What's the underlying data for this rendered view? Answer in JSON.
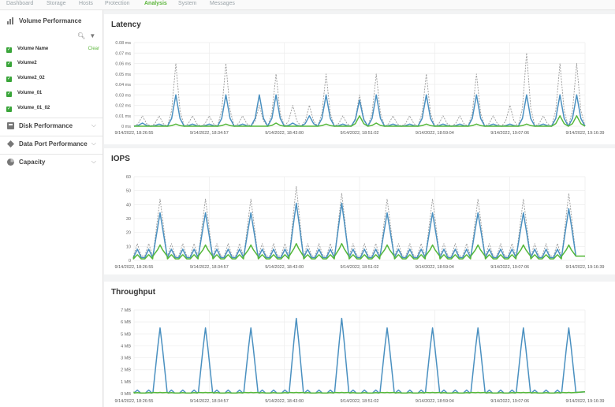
{
  "nav": {
    "tabs": [
      {
        "label": "Dashboard",
        "active": false
      },
      {
        "label": "Storage",
        "active": false
      },
      {
        "label": "Hosts",
        "active": false
      },
      {
        "label": "Protection",
        "active": false
      },
      {
        "label": "Analysis",
        "active": true
      },
      {
        "label": "System",
        "active": false
      },
      {
        "label": "Messages",
        "active": false
      }
    ]
  },
  "sidebar": {
    "volume_performance": {
      "title": "Volume Performance",
      "icon": "bar-chart-icon",
      "header_label": "Volume Name",
      "clear_label": "Clear",
      "volumes": [
        "Volume2",
        "Volume2_02",
        "Volume_01",
        "Volume_01_02"
      ]
    },
    "sections": [
      {
        "label": "Disk Performance",
        "icon": "disk-icon"
      },
      {
        "label": "Data Port Performance",
        "icon": "data-port-icon"
      },
      {
        "label": "Capacity",
        "icon": "pie-icon"
      }
    ]
  },
  "colors": {
    "blue": "#4a90c0",
    "green": "#55b83a",
    "gray": "#9a9a9a",
    "accent": "#5bb53a"
  },
  "panels": {
    "latency": {
      "title": "Latency"
    },
    "iops": {
      "title": "IOPS"
    },
    "throughput": {
      "title": "Throughput"
    }
  },
  "chart_data": [
    {
      "type": "line",
      "title": "Latency",
      "ylabel": "",
      "yticks": [
        "0 ms",
        "0.01 ms",
        "0.02 ms",
        "0.03 ms",
        "0.04 ms",
        "0.05 ms",
        "0.06 ms",
        "0.07 ms",
        "0.08 ms"
      ],
      "ylim": [
        0,
        0.08
      ],
      "grid": true,
      "xticks": [
        "9/14/2022, 18:26:55",
        "9/14/2022, 18:34:57",
        "9/14/2022, 18:43:00",
        "9/14/2022, 18:51:02",
        "9/14/2022, 18:59:04",
        "9/14/2022, 19:07:06",
        "9/14/2022, 19:16:39"
      ],
      "x": [
        0.5,
        1,
        1.5,
        2,
        2.5,
        3,
        3.5,
        4,
        4.5,
        5,
        5.5,
        6,
        6.5,
        7,
        7.5,
        8,
        8.5,
        9,
        9.5,
        10,
        10.5,
        11,
        11.5,
        12,
        12.5,
        13,
        13.5
      ],
      "series": [
        {
          "color": "#9a9a9a",
          "dashed": true,
          "values": [
            0.01,
            0.01,
            0.06,
            0.01,
            0.01,
            0.06,
            0.01,
            0.02,
            0.05,
            0.02,
            0.02,
            0.05,
            0.01,
            0.03,
            0.05,
            0.01,
            0.01,
            0.05,
            0.01,
            0.01,
            0.05,
            0.01,
            0.02,
            0.07,
            0.01,
            0.06,
            0.06
          ]
        },
        {
          "color": "#4a90c0",
          "dashed": false,
          "values": [
            0.003,
            0.002,
            0.03,
            0.002,
            0.002,
            0.03,
            0.002,
            0.03,
            0.03,
            0.003,
            0.01,
            0.03,
            0.002,
            0.025,
            0.03,
            0.002,
            0.002,
            0.03,
            0.002,
            0.002,
            0.03,
            0.002,
            0.002,
            0.03,
            0.002,
            0.03,
            0.03
          ]
        },
        {
          "color": "#55b83a",
          "dashed": false,
          "values": [
            0,
            0,
            0.002,
            0,
            0,
            0.002,
            0,
            0,
            0.003,
            0,
            0,
            0.002,
            0,
            0.01,
            0.003,
            0,
            0,
            0.002,
            0,
            0,
            0.002,
            0,
            0,
            0.002,
            0,
            0.01,
            0.01
          ]
        }
      ]
    },
    {
      "type": "line",
      "title": "IOPS",
      "yticks": [
        "0",
        "10",
        "20",
        "30",
        "40",
        "50",
        "60"
      ],
      "ylim": [
        0,
        60
      ],
      "grid": true,
      "xticks": [
        "9/14/2022, 18:26:55",
        "9/14/2022, 18:34:57",
        "9/14/2022, 18:43:00",
        "9/14/2022, 18:51:02",
        "9/14/2022, 18:59:04",
        "9/14/2022, 19:07:06",
        "9/14/2022, 19:16:39"
      ],
      "series": [
        {
          "name": "",
          "color": "#9a9a9a",
          "dashed": true,
          "peaks": [
            44,
            44,
            44,
            53,
            48,
            44,
            44,
            44,
            44,
            48
          ]
        },
        {
          "name": "",
          "color": "#4a90c0",
          "dashed": false,
          "peaks": [
            34,
            34,
            34,
            41,
            41,
            34,
            34,
            34,
            34,
            37
          ]
        },
        {
          "name": "",
          "color": "#55b83a",
          "dashed": false,
          "peaks": [
            11,
            11,
            11,
            12,
            12,
            11,
            11,
            11,
            11,
            11
          ]
        }
      ]
    },
    {
      "type": "line",
      "title": "Throughput",
      "yticks": [
        "0 MB",
        "1 MB",
        "2 MB",
        "3 MB",
        "4 MB",
        "5 MB",
        "6 MB",
        "7 MB"
      ],
      "ylim": [
        0,
        7
      ],
      "grid": true,
      "xticks": [
        "9/14/2022, 18:26:55",
        "9/14/2022, 18:34:57",
        "9/14/2022, 18:43:00",
        "9/14/2022, 18:51:02",
        "9/14/2022, 18:59:04",
        "9/14/2022, 19:07:06",
        "9/14/2022, 19:16:39"
      ],
      "series": [
        {
          "name": "",
          "color": "#4a90c0",
          "dashed": false,
          "peaks": [
            5.5,
            5.5,
            5.5,
            6.3,
            6.3,
            5.5,
            5.5,
            5.5,
            5.5,
            5.5
          ]
        },
        {
          "name": "",
          "color": "#55b83a",
          "dashed": false,
          "peaks": [
            0.1,
            0.1,
            0.1,
            0.1,
            0.1,
            0.1,
            0.1,
            0.1,
            0.1,
            0.1
          ]
        }
      ]
    }
  ]
}
